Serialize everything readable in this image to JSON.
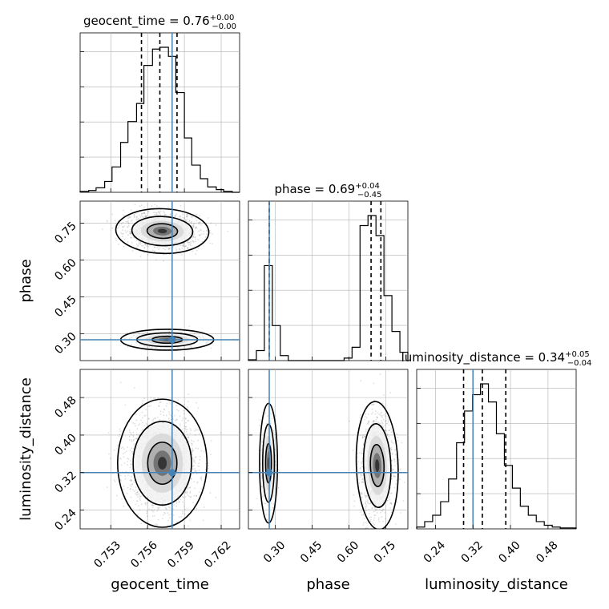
{
  "chart_data": {
    "type": "scatter",
    "variant": "corner-plot",
    "parameters": [
      {
        "name": "geocent_time",
        "axis_label": "geocent_time",
        "range": [
          0.7505,
          0.7635
        ],
        "ticks": [
          0.753,
          0.756,
          0.759,
          0.762
        ],
        "tick_labels": [
          "0.753",
          "0.756",
          "0.759",
          "0.762"
        ],
        "truth": 0.758,
        "quantiles": [
          0.7555,
          0.757,
          0.7584
        ],
        "title": {
          "name": "geocent_time",
          "median": "0.76",
          "plus": "+0.00",
          "minus": "−0.00"
        },
        "hist_bins": [
          0.7505,
          0.7512,
          0.7518,
          0.7525,
          0.7531,
          0.7538,
          0.7544,
          0.7551,
          0.7557,
          0.7564,
          0.757,
          0.7577,
          0.7583,
          0.759,
          0.7596,
          0.7603,
          0.7609,
          0.7616,
          0.7622,
          0.7629,
          0.7635
        ],
        "hist_counts": [
          1,
          2,
          5,
          12,
          28,
          55,
          78,
          98,
          140,
          158,
          160,
          150,
          110,
          60,
          30,
          15,
          6,
          3,
          1,
          0
        ]
      },
      {
        "name": "phase",
        "axis_label": "phase",
        "range": [
          0.19,
          0.84
        ],
        "ticks": [
          0.3,
          0.45,
          0.6,
          0.75
        ],
        "tick_labels": [
          "0.30",
          "0.45",
          "0.60",
          "0.75"
        ],
        "truth": 0.275,
        "quantiles": [
          0.275,
          0.69,
          0.73
        ],
        "title": {
          "name": "phase",
          "median": "0.69",
          "plus": "+0.04",
          "minus": "−0.45"
        },
        "hist_bins": [
          0.19,
          0.2225,
          0.255,
          0.2875,
          0.32,
          0.3525,
          0.385,
          0.4175,
          0.45,
          0.4825,
          0.515,
          0.5475,
          0.58,
          0.6125,
          0.645,
          0.6775,
          0.71,
          0.7425,
          0.775,
          0.8075,
          0.84
        ],
        "hist_counts": [
          1,
          12,
          114,
          42,
          6,
          0,
          0,
          0,
          0,
          0,
          0,
          0,
          3,
          16,
          162,
          174,
          150,
          78,
          35,
          10
        ]
      },
      {
        "name": "luminosity_distance",
        "axis_label": "luminosity_distance",
        "range": [
          0.2,
          0.54
        ],
        "ticks": [
          0.24,
          0.32,
          0.4,
          0.48
        ],
        "tick_labels": [
          "0.24",
          "0.32",
          "0.40",
          "0.48"
        ],
        "truth": 0.32,
        "quantiles": [
          0.3,
          0.34,
          0.39
        ],
        "title": {
          "name": "luminosity_distance",
          "median": "0.34",
          "plus": "+0.05",
          "minus": "−0.04"
        },
        "hist_bins": [
          0.2,
          0.217,
          0.234,
          0.251,
          0.268,
          0.285,
          0.302,
          0.319,
          0.336,
          0.353,
          0.37,
          0.387,
          0.404,
          0.421,
          0.438,
          0.455,
          0.472,
          0.489,
          0.506,
          0.523,
          0.54
        ],
        "hist_counts": [
          2,
          8,
          15,
          30,
          55,
          95,
          130,
          148,
          160,
          140,
          105,
          70,
          45,
          25,
          15,
          8,
          4,
          2,
          1,
          1
        ]
      }
    ],
    "truth_color": "#4682b4",
    "grid": true,
    "pairs": [
      {
        "x": "geocent_time",
        "y": "phase",
        "modes": [
          {
            "cx": 0.7572,
            "cy": 0.718,
            "sx": 0.00125,
            "sy": 0.03,
            "rho": -0.1,
            "w": 0.82
          },
          {
            "cx": 0.7576,
            "cy": 0.275,
            "sx": 0.00125,
            "sy": 0.014,
            "rho": 0.0,
            "w": 0.18
          }
        ]
      },
      {
        "x": "geocent_time",
        "y": "luminosity_distance",
        "modes": [
          {
            "cx": 0.7572,
            "cy": 0.34,
            "sx": 0.0012,
            "sy": 0.045,
            "rho": 0.0,
            "w": 1.0
          }
        ]
      },
      {
        "x": "phase",
        "y": "luminosity_distance",
        "modes": [
          {
            "cx": 0.272,
            "cy": 0.34,
            "sx": 0.012,
            "sy": 0.042,
            "rho": 0.0,
            "w": 0.18
          },
          {
            "cx": 0.715,
            "cy": 0.335,
            "sx": 0.028,
            "sy": 0.045,
            "rho": 0.1,
            "w": 0.82
          }
        ]
      }
    ]
  }
}
